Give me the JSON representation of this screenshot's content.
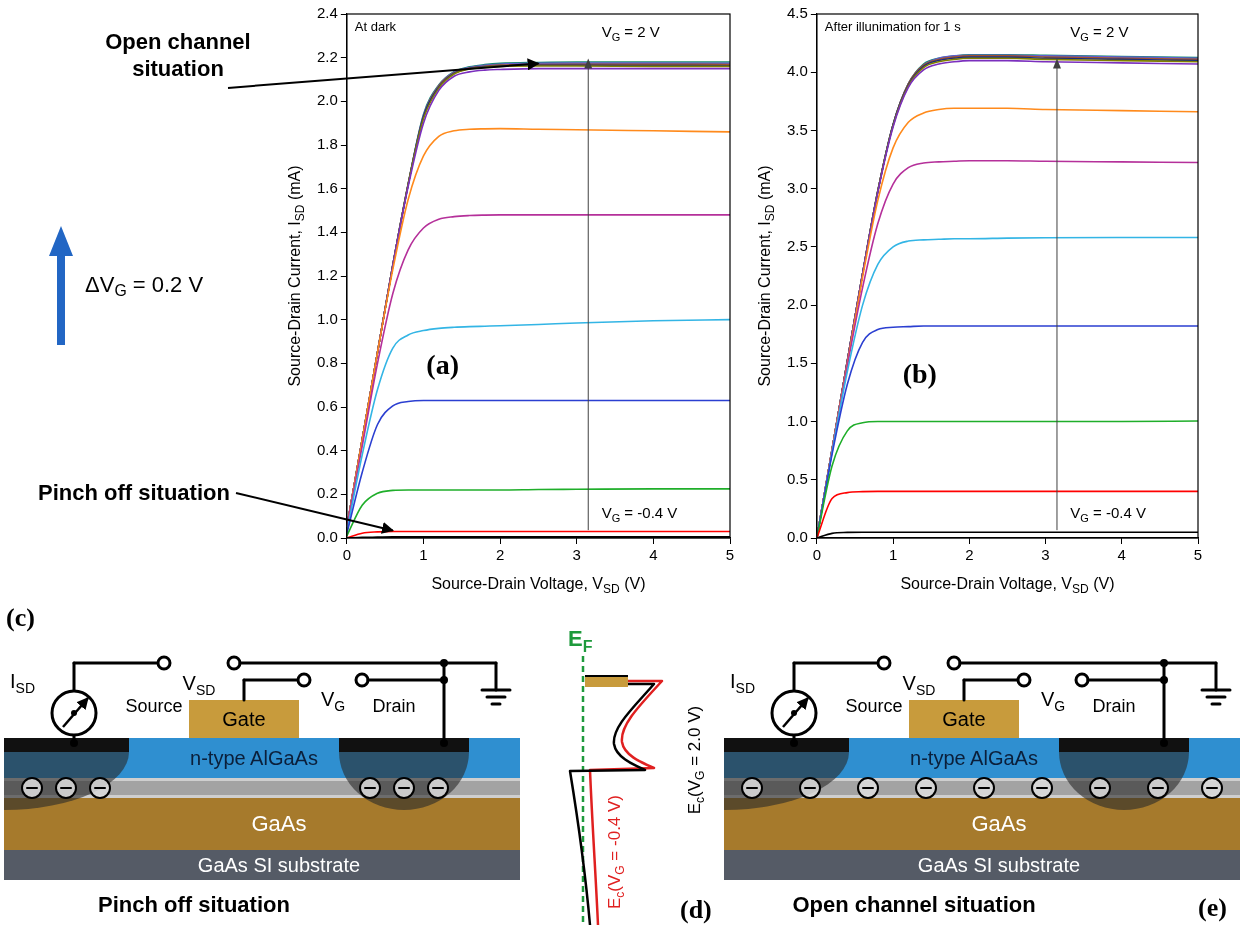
{
  "chart_data": [
    {
      "type": "line",
      "title": "At dark",
      "panel": "(a)",
      "x_label": [
        "Source-Drain Voltage, V",
        {
          "sub": "SD"
        },
        " (V)"
      ],
      "y_label": [
        "Source-Drain Current, I",
        {
          "sub": "SD"
        },
        " (mA)"
      ],
      "annotations": [
        [
          "V",
          {
            "sub": "G"
          },
          " = 2 V"
        ],
        [
          "V",
          {
            "sub": "G"
          },
          " = -0.4 V"
        ]
      ],
      "x": [
        0,
        0.2,
        0.4,
        0.6,
        0.8,
        1.0,
        1.2,
        1.4,
        1.6,
        1.8,
        2.0,
        2.5,
        3,
        4,
        5
      ],
      "series": [
        {
          "color": "#000000",
          "values": [
            0,
            0.003,
            0.004,
            0.005,
            0.005,
            0.005,
            0.005,
            0.005,
            0.005,
            0.005,
            0.005,
            0.005,
            0.005,
            0.005,
            0.005
          ]
        },
        {
          "color": "#ff0000",
          "values": [
            0,
            0.022,
            0.028,
            0.03,
            0.03,
            0.03,
            0.03,
            0.03,
            0.03,
            0.03,
            0.03,
            0.03,
            0.03,
            0.03,
            0.03
          ]
        },
        {
          "color": "#1fae2a",
          "values": [
            0.01,
            0.15,
            0.205,
            0.218,
            0.22,
            0.22,
            0.22,
            0.22,
            0.22,
            0.22,
            0.22,
            0.222,
            0.223,
            0.225,
            0.225
          ]
        },
        {
          "color": "#2b3fd1",
          "values": [
            0.02,
            0.3,
            0.52,
            0.605,
            0.625,
            0.63,
            0.63,
            0.63,
            0.63,
            0.63,
            0.63,
            0.63,
            0.63,
            0.63,
            0.63
          ]
        },
        {
          "color": "#33b5e5",
          "values": [
            0.03,
            0.38,
            0.68,
            0.87,
            0.93,
            0.95,
            0.96,
            0.965,
            0.968,
            0.97,
            0.972,
            0.978,
            0.985,
            0.995,
            1.0
          ]
        },
        {
          "color": "#b5309a",
          "values": [
            0.05,
            0.42,
            0.8,
            1.12,
            1.32,
            1.42,
            1.46,
            1.472,
            1.477,
            1.479,
            1.48,
            1.48,
            1.48,
            1.48,
            1.48
          ]
        },
        {
          "color": "#ff8a1c",
          "values": [
            0.05,
            0.45,
            0.85,
            1.23,
            1.55,
            1.75,
            1.84,
            1.865,
            1.872,
            1.874,
            1.875,
            1.872,
            1.87,
            1.865,
            1.86
          ]
        },
        {
          "color": "#7b2fbe",
          "values": [
            0.05,
            0.45,
            0.85,
            1.25,
            1.61,
            1.9,
            2.05,
            2.115,
            2.135,
            2.143,
            2.146,
            2.15,
            2.15,
            2.15,
            2.15
          ]
        },
        {
          "color": "#808000",
          "values": [
            0.05,
            0.45,
            0.85,
            1.25,
            1.62,
            1.92,
            2.06,
            2.125,
            2.148,
            2.156,
            2.16,
            2.162,
            2.162,
            2.16,
            2.16
          ]
        },
        {
          "color": "#1b2a80",
          "values": [
            0.05,
            0.45,
            0.85,
            1.25,
            1.62,
            1.93,
            2.065,
            2.128,
            2.15,
            2.158,
            2.162,
            2.165,
            2.165,
            2.164,
            2.163
          ]
        },
        {
          "color": "#a0522d",
          "values": [
            0.05,
            0.45,
            0.85,
            1.25,
            1.62,
            1.93,
            2.07,
            2.13,
            2.152,
            2.161,
            2.166,
            2.169,
            2.17,
            2.17,
            2.169
          ]
        },
        {
          "color": "#5f5fcf",
          "values": [
            0.05,
            0.45,
            0.85,
            1.25,
            1.62,
            1.935,
            2.072,
            2.133,
            2.155,
            2.165,
            2.17,
            2.174,
            2.175,
            2.175,
            2.174
          ]
        },
        {
          "color": "#138a6e",
          "values": [
            0.05,
            0.45,
            0.85,
            1.25,
            1.62,
            1.94,
            2.075,
            2.136,
            2.158,
            2.168,
            2.174,
            2.178,
            2.18,
            2.18,
            2.18
          ]
        }
      ],
      "xlim": [
        0,
        5
      ],
      "xticks": [
        0,
        1,
        2,
        3,
        4,
        5
      ],
      "ylim": [
        0,
        2.4
      ],
      "yticks": [
        {
          "value": 0,
          "label": "0.0"
        },
        0.2,
        0.4,
        0.6,
        0.8,
        {
          "value": 1,
          "label": "1.0"
        },
        1.2,
        1.4,
        1.6,
        1.8,
        {
          "value": 2,
          "label": "2.0"
        },
        2.2,
        2.4
      ],
      "grid": false
    },
    {
      "type": "line",
      "title": "After illunimation for 1 s",
      "panel": "(b)",
      "x_label": [
        "Source-Drain Voltage, V",
        {
          "sub": "SD"
        },
        " (V)"
      ],
      "y_label": [
        "Source-Drain Current, I",
        {
          "sub": "SD"
        },
        " (mA)"
      ],
      "annotations": [
        [
          "V",
          {
            "sub": "G"
          },
          " = 2 V"
        ],
        [
          "V",
          {
            "sub": "G"
          },
          " = -0.4 V"
        ]
      ],
      "x": [
        0,
        0.2,
        0.4,
        0.6,
        0.8,
        1.0,
        1.2,
        1.4,
        1.6,
        1.8,
        2.0,
        2.5,
        3,
        4,
        5
      ],
      "series": [
        {
          "color": "#000000",
          "values": [
            0,
            0.04,
            0.048,
            0.05,
            0.05,
            0.05,
            0.05,
            0.05,
            0.05,
            0.05,
            0.05,
            0.05,
            0.05,
            0.05,
            0.05
          ]
        },
        {
          "color": "#ff0000",
          "values": [
            0,
            0.34,
            0.39,
            0.398,
            0.4,
            0.4,
            0.4,
            0.4,
            0.4,
            0.4,
            0.4,
            0.4,
            0.4,
            0.4,
            0.4
          ]
        },
        {
          "color": "#1fae2a",
          "values": [
            0,
            0.62,
            0.92,
            0.99,
            1.0,
            1.0,
            1.0,
            1.0,
            1.0,
            1.0,
            1.0,
            1.0,
            1.0,
            1.0,
            1.005
          ]
        },
        {
          "color": "#2b3fd1",
          "values": [
            0,
            0.72,
            1.32,
            1.68,
            1.79,
            1.81,
            1.815,
            1.82,
            1.82,
            1.82,
            1.82,
            1.82,
            1.82,
            1.82,
            1.82
          ]
        },
        {
          "color": "#33b5e5",
          "values": [
            0,
            0.74,
            1.43,
            2.0,
            2.35,
            2.5,
            2.55,
            2.56,
            2.565,
            2.57,
            2.57,
            2.575,
            2.578,
            2.58,
            2.58
          ]
        },
        {
          "color": "#b5309a",
          "values": [
            0,
            0.75,
            1.48,
            2.15,
            2.7,
            3.04,
            3.18,
            3.22,
            3.23,
            3.235,
            3.24,
            3.24,
            3.235,
            3.23,
            3.225
          ]
        },
        {
          "color": "#ff8a1c",
          "values": [
            0,
            0.76,
            1.5,
            2.24,
            2.9,
            3.35,
            3.57,
            3.65,
            3.68,
            3.69,
            3.69,
            3.69,
            3.68,
            3.67,
            3.66
          ]
        },
        {
          "color": "#7b2fbe",
          "values": [
            0,
            0.76,
            1.52,
            2.27,
            2.97,
            3.53,
            3.87,
            4.02,
            4.07,
            4.09,
            4.1,
            4.1,
            4.09,
            4.08,
            4.07
          ]
        },
        {
          "color": "#808000",
          "values": [
            0,
            0.76,
            1.52,
            2.27,
            2.98,
            3.54,
            3.88,
            4.04,
            4.09,
            4.11,
            4.12,
            4.12,
            4.11,
            4.1,
            4.09
          ]
        },
        {
          "color": "#1b2a80",
          "values": [
            0,
            0.76,
            1.52,
            2.27,
            2.98,
            3.55,
            3.89,
            4.05,
            4.1,
            4.12,
            4.13,
            4.13,
            4.12,
            4.11,
            4.1
          ]
        },
        {
          "color": "#a0522d",
          "values": [
            0,
            0.76,
            1.52,
            2.27,
            2.98,
            3.55,
            3.9,
            4.06,
            4.11,
            4.13,
            4.14,
            4.14,
            4.13,
            4.12,
            4.11
          ]
        },
        {
          "color": "#5f5fcf",
          "values": [
            0,
            0.76,
            1.52,
            2.27,
            2.98,
            3.55,
            3.9,
            4.06,
            4.12,
            4.14,
            4.145,
            4.145,
            4.14,
            4.13,
            4.12
          ]
        },
        {
          "color": "#138a6e",
          "values": [
            0,
            0.76,
            1.52,
            2.27,
            2.98,
            3.55,
            3.9,
            4.07,
            4.12,
            4.14,
            4.15,
            4.15,
            4.145,
            4.135,
            4.125
          ]
        }
      ],
      "xlim": [
        0,
        5
      ],
      "xticks": [
        0,
        1,
        2,
        3,
        4,
        5
      ],
      "ylim": [
        0,
        4.5
      ],
      "yticks": [
        {
          "value": 0,
          "label": "0.0"
        },
        0.5,
        {
          "value": 1,
          "label": "1.0"
        },
        1.5,
        {
          "value": 2,
          "label": "2.0"
        },
        2.5,
        {
          "value": 3,
          "label": "3.0"
        },
        3.5,
        {
          "value": 4,
          "label": "4.0"
        },
        4.5
      ],
      "grid": false
    }
  ],
  "annotations": {
    "open_channel": "Open channel situation",
    "gate_step": [
      "ΔV",
      {
        "sub": "G"
      },
      " = 0.2 V"
    ],
    "pinch_off": "Pinch off situation"
  },
  "diagrams": {
    "c": {
      "panel": "(c)",
      "caption": "Pinch off situation",
      "current": [
        "I",
        {
          "sub": "SD"
        }
      ],
      "source_drain_voltage": [
        "V",
        {
          "sub": "SD"
        }
      ],
      "gate_voltage": [
        "V",
        {
          "sub": "G"
        }
      ],
      "source": "Source",
      "gate": "Gate",
      "drain": "Drain",
      "layers": [
        "n-type AlGaAs",
        "GaAs",
        "GaAs SI substrate"
      ]
    },
    "d": {
      "panel": "(d)",
      "fermi_level": {
        "label": [
          "E",
          {
            "sub": "F"
          }
        ],
        "color": "#1e9a3c"
      },
      "bands": [
        {
          "label": [
            "E",
            {
              "sub": "c"
            },
            "(V",
            {
              "sub": "G"
            },
            " = -0.4 V)"
          ],
          "color": "#e02020"
        },
        {
          "label": [
            "E",
            {
              "sub": "c"
            },
            "(V",
            {
              "sub": "G"
            },
            " = 2.0 V)"
          ],
          "color": "#000000"
        }
      ]
    },
    "e": {
      "panel": "(e)",
      "caption": "Open channel situation",
      "current": [
        "I",
        {
          "sub": "SD"
        }
      ],
      "source_drain_voltage": [
        "V",
        {
          "sub": "SD"
        }
      ],
      "gate_voltage": [
        "V",
        {
          "sub": "G"
        }
      ],
      "source": "Source",
      "gate": "Gate",
      "drain": "Drain",
      "layers": [
        "n-type AlGaAs",
        "GaAs",
        "GaAs SI substrate"
      ]
    }
  }
}
